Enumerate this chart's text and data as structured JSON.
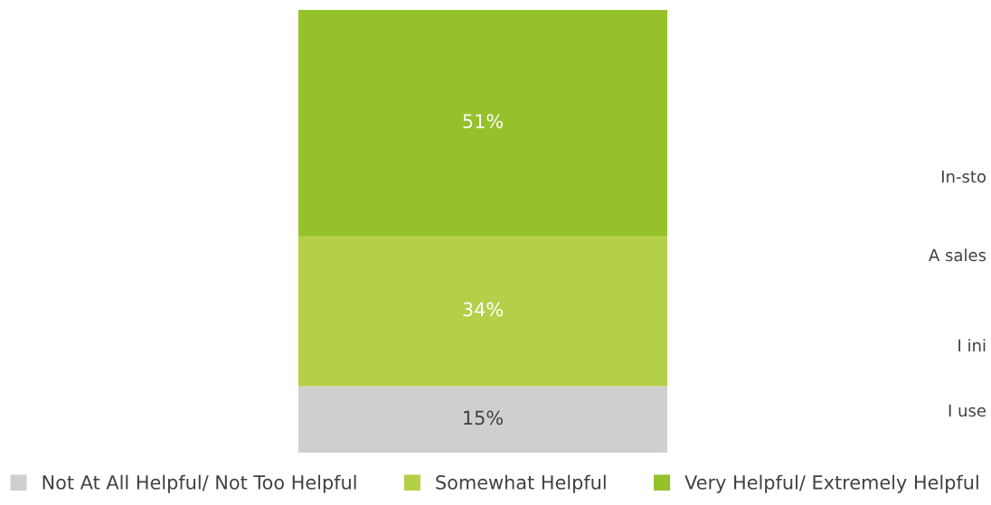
{
  "chart_data": {
    "type": "bar",
    "stacked": true,
    "categories": [
      null
    ],
    "series": [
      {
        "name": "Not At All Helpful/ Not Too Helpful",
        "color": "#d0cece",
        "values": [
          15
        ],
        "value_labels": [
          "15%"
        ]
      },
      {
        "name": "Somewhat Helpful",
        "color": "#b5cf49",
        "values": [
          34
        ],
        "value_labels": [
          "34%"
        ]
      },
      {
        "name": "Very Helpful/ Extremely Helpful",
        "color": "#95c12b",
        "values": [
          51
        ],
        "value_labels": [
          "51%"
        ]
      }
    ],
    "legend": "bottom",
    "tick_labels": false,
    "annotations": [
      "In-sto",
      "A sales",
      "I ini",
      "I use"
    ]
  }
}
